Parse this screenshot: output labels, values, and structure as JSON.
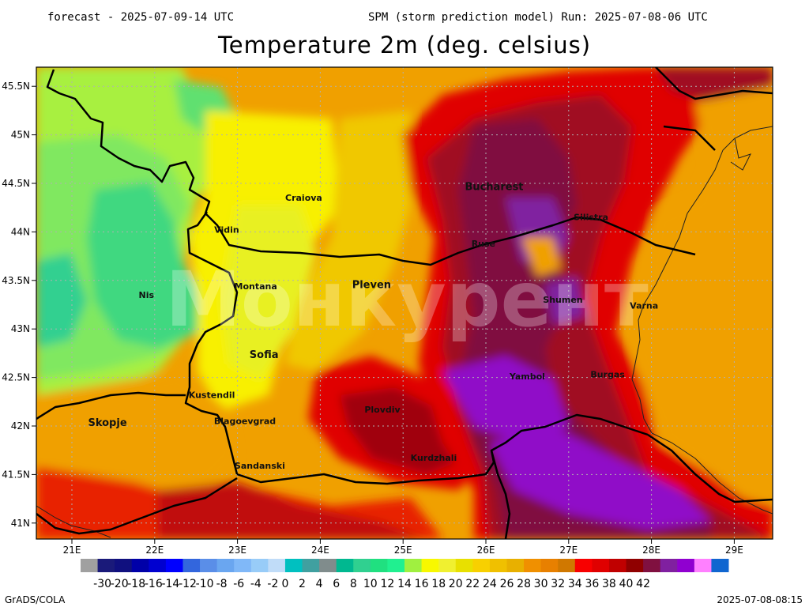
{
  "header": {
    "left": "forecast - 2025-07-09-14 UTC",
    "right": "SPM (storm prediction model) Run: 2025-07-08-06 UTC"
  },
  "title": "Temperature 2m (deg. celsius)",
  "watermark": "Монкурент",
  "axes": {
    "lat_ticks": [
      "45.5N",
      "45N",
      "44.5N",
      "44N",
      "43.5N",
      "43N",
      "42.5N",
      "42N",
      "41.5N",
      "41N"
    ],
    "lon_ticks": [
      "21E",
      "22E",
      "23E",
      "24E",
      "25E",
      "26E",
      "27E",
      "28E",
      "29E"
    ]
  },
  "cities": [
    {
      "name": "Bucharest",
      "lon": 26.1,
      "lat": 44.43,
      "big": true
    },
    {
      "name": "Craiova",
      "lon": 23.8,
      "lat": 44.32,
      "big": false
    },
    {
      "name": "Vidin",
      "lon": 22.87,
      "lat": 43.99,
      "big": false
    },
    {
      "name": "Silistra",
      "lon": 27.27,
      "lat": 44.12,
      "big": false
    },
    {
      "name": "Ruse",
      "lon": 25.97,
      "lat": 43.85,
      "big": false
    },
    {
      "name": "Nis",
      "lon": 21.9,
      "lat": 43.32,
      "big": false
    },
    {
      "name": "Montana",
      "lon": 23.22,
      "lat": 43.41,
      "big": false
    },
    {
      "name": "Pleven",
      "lon": 24.62,
      "lat": 43.42,
      "big": true
    },
    {
      "name": "Shumen",
      "lon": 26.93,
      "lat": 43.27,
      "big": false
    },
    {
      "name": "Varna",
      "lon": 27.91,
      "lat": 43.21,
      "big": false
    },
    {
      "name": "Sofia",
      "lon": 23.32,
      "lat": 42.7,
      "big": true
    },
    {
      "name": "Yambol",
      "lon": 26.5,
      "lat": 42.48,
      "big": false
    },
    {
      "name": "Burgas",
      "lon": 27.47,
      "lat": 42.5,
      "big": false
    },
    {
      "name": "Kustendil",
      "lon": 22.69,
      "lat": 42.29,
      "big": false
    },
    {
      "name": "Plovdiv",
      "lon": 24.75,
      "lat": 42.14,
      "big": false
    },
    {
      "name": "Skopje",
      "lon": 21.43,
      "lat": 42.0,
      "big": true
    },
    {
      "name": "Blagoevgrad",
      "lon": 23.09,
      "lat": 42.02,
      "big": false
    },
    {
      "name": "Sandanski",
      "lon": 23.27,
      "lat": 41.56,
      "big": false
    },
    {
      "name": "Kurdzhali",
      "lon": 25.37,
      "lat": 41.64,
      "big": false
    }
  ],
  "colorbar": {
    "colors": [
      "#a0a0a0",
      "#1a1a7a",
      "#10107f",
      "#0000a8",
      "#0000d0",
      "#0000ff",
      "#3366dd",
      "#5a8ee8",
      "#6aa6f0",
      "#80b8f8",
      "#98ccf8",
      "#c0dcf8",
      "#00c0c0",
      "#40a0a0",
      "#808c8c",
      "#00b890",
      "#30d090",
      "#20e080",
      "#20f090",
      "#a0f040",
      "#f8f800",
      "#f0f030",
      "#e8e000",
      "#f8d000",
      "#f0c000",
      "#e8b000",
      "#f09000",
      "#e88000",
      "#d07800",
      "#f80000",
      "#e00000",
      "#c00000",
      "#900000",
      "#801040",
      "#8020a0",
      "#9000d0",
      "#ff80ff",
      "#1066d0"
    ],
    "labels": [
      "-30",
      "-20",
      "-18",
      "-16",
      "-14",
      "-12",
      "-10",
      "-8",
      "-6",
      "-4",
      "-2",
      "0",
      "2",
      "4",
      "6",
      "8",
      "10",
      "12",
      "14",
      "16",
      "18",
      "20",
      "22",
      "24",
      "26",
      "28",
      "30",
      "32",
      "34",
      "36",
      "38",
      "40",
      "42"
    ]
  },
  "footer": {
    "left": "GrADS/COLA",
    "right": "2025-07-08-08:15"
  }
}
